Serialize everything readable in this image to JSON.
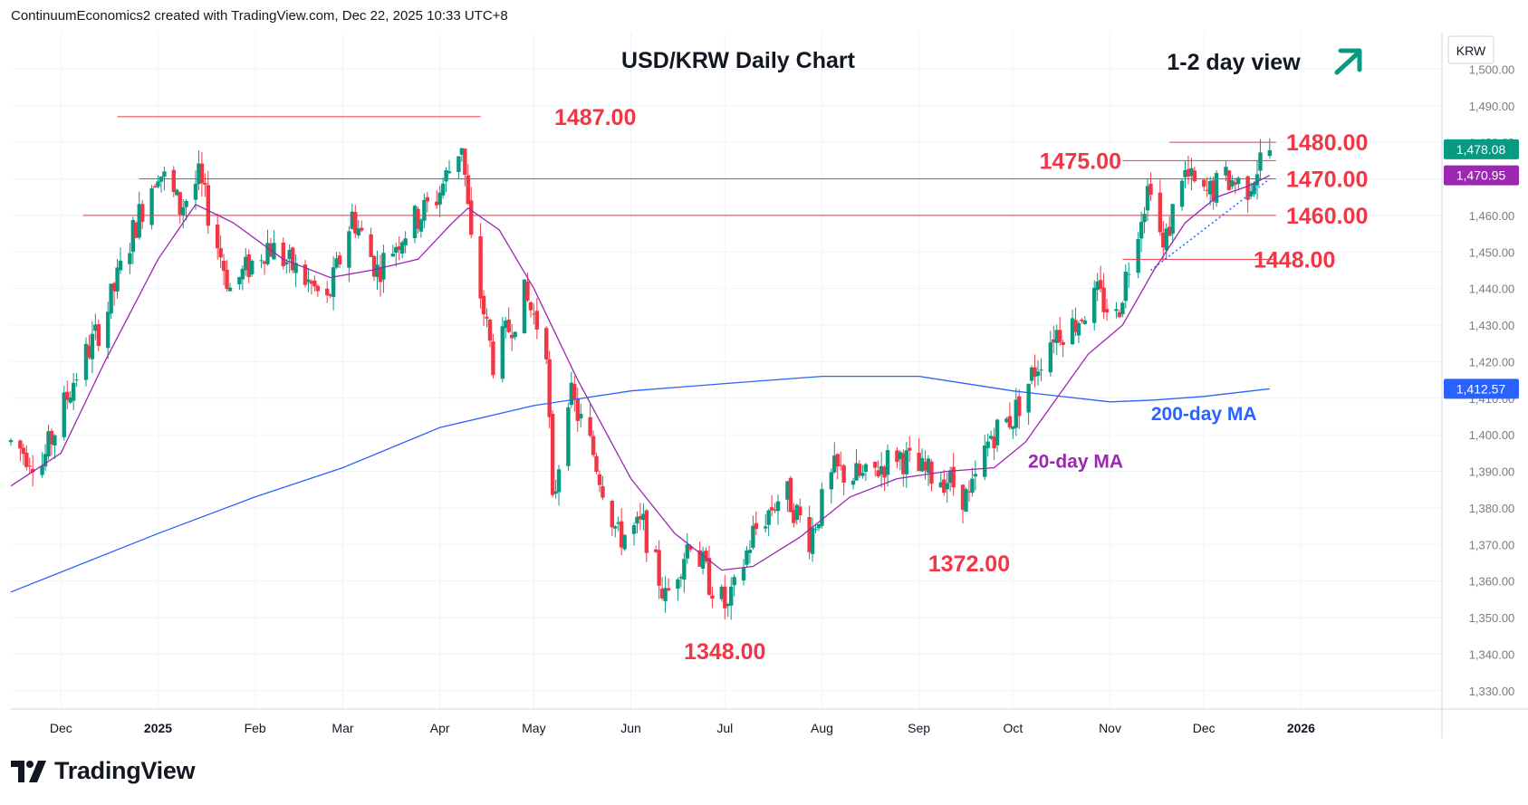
{
  "header": {
    "attribution": "ContinuumEconomics2 created with TradingView.com, Dec 22, 2025 10:33 UTC+8"
  },
  "footer": {
    "brand": "TradingView"
  },
  "colors": {
    "up": "#089981",
    "down": "#f23645",
    "ma20": "#9c27b0",
    "ma200": "#2962ff",
    "level": "#f23645",
    "arrow": "#089981",
    "text": "#131722"
  },
  "chart_data": {
    "type": "candlestick",
    "title": "USD/KRW Daily Chart",
    "subtitle": "1-2 day view",
    "currency_label": "KRW",
    "ylim": [
      1325,
      1510
    ],
    "y_ticks": [
      1330,
      1340,
      1350,
      1360,
      1370,
      1380,
      1390,
      1400,
      1410,
      1420,
      1430,
      1440,
      1450,
      1460,
      1470,
      1480,
      1490,
      1500
    ],
    "y_tick_labels": [
      "1,330.00",
      "1,340.00",
      "1,350.00",
      "1,360.00",
      "1,370.00",
      "1,380.00",
      "1,390.00",
      "1,400.00",
      "1,410.00",
      "1,420.00",
      "1,430.00",
      "1,440.00",
      "1,450.00",
      "1,460.00",
      "1,470.00",
      "1,480.00",
      "1,490.00",
      "1,500.00"
    ],
    "x_ticks": [
      {
        "label": "Dec",
        "date": "2024-12-01"
      },
      {
        "label": "2025",
        "date": "2025-01-01"
      },
      {
        "label": "Feb",
        "date": "2025-02-01"
      },
      {
        "label": "Mar",
        "date": "2025-03-01"
      },
      {
        "label": "Apr",
        "date": "2025-04-01"
      },
      {
        "label": "May",
        "date": "2025-05-01"
      },
      {
        "label": "Jun",
        "date": "2025-06-01"
      },
      {
        "label": "Jul",
        "date": "2025-07-01"
      },
      {
        "label": "Aug",
        "date": "2025-08-01"
      },
      {
        "label": "Sep",
        "date": "2025-09-01"
      },
      {
        "label": "Oct",
        "date": "2025-10-01"
      },
      {
        "label": "Nov",
        "date": "2025-11-01"
      },
      {
        "label": "Dec",
        "date": "2025-12-01"
      },
      {
        "label": "2026",
        "date": "2026-01-01"
      }
    ],
    "x_range": [
      "2024-11-15",
      "2026-02-15"
    ],
    "anchors": [
      [
        "2024-11-15",
        1398
      ],
      [
        "2024-11-25",
        1392
      ],
      [
        "2024-12-05",
        1415
      ],
      [
        "2024-12-15",
        1432
      ],
      [
        "2024-12-25",
        1458
      ],
      [
        "2025-01-01",
        1473
      ],
      [
        "2025-01-08",
        1462
      ],
      [
        "2025-01-14",
        1470
      ],
      [
        "2025-01-24",
        1440
      ],
      [
        "2025-02-05",
        1452
      ],
      [
        "2025-02-14",
        1445
      ],
      [
        "2025-02-24",
        1436
      ],
      [
        "2025-03-04",
        1460
      ],
      [
        "2025-03-12",
        1445
      ],
      [
        "2025-03-20",
        1455
      ],
      [
        "2025-03-31",
        1465
      ],
      [
        "2025-04-08",
        1480
      ],
      [
        "2025-04-11",
        1452
      ],
      [
        "2025-04-18",
        1420
      ],
      [
        "2025-04-28",
        1438
      ],
      [
        "2025-05-05",
        1425
      ],
      [
        "2025-05-07",
        1380
      ],
      [
        "2025-05-12",
        1412
      ],
      [
        "2025-05-20",
        1395
      ],
      [
        "2025-05-28",
        1372
      ],
      [
        "2025-06-05",
        1375
      ],
      [
        "2025-06-12",
        1355
      ],
      [
        "2025-06-20",
        1372
      ],
      [
        "2025-06-26",
        1360
      ],
      [
        "2025-07-02",
        1352
      ],
      [
        "2025-07-10",
        1373
      ],
      [
        "2025-07-20",
        1385
      ],
      [
        "2025-07-28",
        1372
      ],
      [
        "2025-08-05",
        1390
      ],
      [
        "2025-08-15",
        1388
      ],
      [
        "2025-08-25",
        1395
      ],
      [
        "2025-09-01",
        1390
      ],
      [
        "2025-09-10",
        1388
      ],
      [
        "2025-09-17",
        1382
      ],
      [
        "2025-09-24",
        1400
      ],
      [
        "2025-10-01",
        1405
      ],
      [
        "2025-10-08",
        1418
      ],
      [
        "2025-10-14",
        1428
      ],
      [
        "2025-10-20",
        1430
      ],
      [
        "2025-10-28",
        1438
      ],
      [
        "2025-11-03",
        1432
      ],
      [
        "2025-11-10",
        1458
      ],
      [
        "2025-11-14",
        1470
      ],
      [
        "2025-11-18",
        1450
      ],
      [
        "2025-11-24",
        1472
      ],
      [
        "2025-12-01",
        1465
      ],
      [
        "2025-12-08",
        1470
      ],
      [
        "2025-12-15",
        1468
      ],
      [
        "2025-12-19",
        1475
      ],
      [
        "2025-12-22",
        1478
      ]
    ],
    "series": [
      {
        "name": "200-day MA",
        "color": "#2962ff",
        "last_value": 1412.57,
        "last_label": "1,412.57",
        "points": [
          [
            "2024-11-15",
            1357
          ],
          [
            "2025-01-01",
            1373
          ],
          [
            "2025-02-01",
            1383
          ],
          [
            "2025-03-01",
            1391
          ],
          [
            "2025-04-01",
            1402
          ],
          [
            "2025-05-01",
            1408
          ],
          [
            "2025-06-01",
            1412
          ],
          [
            "2025-07-01",
            1414
          ],
          [
            "2025-08-01",
            1416
          ],
          [
            "2025-09-01",
            1416
          ],
          [
            "2025-10-01",
            1412
          ],
          [
            "2025-11-01",
            1409
          ],
          [
            "2025-11-15",
            1409.5
          ],
          [
            "2025-12-01",
            1410.5
          ],
          [
            "2025-12-22",
            1412.57
          ]
        ]
      },
      {
        "name": "20-day MA",
        "color": "#9c27b0",
        "last_value": 1470.95,
        "last_label": "1,470.95",
        "points": [
          [
            "2024-11-15",
            1386
          ],
          [
            "2024-12-01",
            1395
          ],
          [
            "2024-12-15",
            1420
          ],
          [
            "2025-01-01",
            1448
          ],
          [
            "2025-01-13",
            1463
          ],
          [
            "2025-01-25",
            1458
          ],
          [
            "2025-02-10",
            1448
          ],
          [
            "2025-02-25",
            1443
          ],
          [
            "2025-03-10",
            1445
          ],
          [
            "2025-03-25",
            1448
          ],
          [
            "2025-04-05",
            1458
          ],
          [
            "2025-04-10",
            1462
          ],
          [
            "2025-04-20",
            1456
          ],
          [
            "2025-05-01",
            1440
          ],
          [
            "2025-05-15",
            1415
          ],
          [
            "2025-06-01",
            1388
          ],
          [
            "2025-06-15",
            1373
          ],
          [
            "2025-06-30",
            1363
          ],
          [
            "2025-07-10",
            1364
          ],
          [
            "2025-07-25",
            1372
          ],
          [
            "2025-08-10",
            1383
          ],
          [
            "2025-08-25",
            1388
          ],
          [
            "2025-09-10",
            1390
          ],
          [
            "2025-09-25",
            1391
          ],
          [
            "2025-10-05",
            1398
          ],
          [
            "2025-10-15",
            1410
          ],
          [
            "2025-10-25",
            1422
          ],
          [
            "2025-11-05",
            1430
          ],
          [
            "2025-11-15",
            1445
          ],
          [
            "2025-11-25",
            1458
          ],
          [
            "2025-12-05",
            1465
          ],
          [
            "2025-12-15",
            1468
          ],
          [
            "2025-12-22",
            1470.95
          ]
        ]
      }
    ],
    "last_price": 1478.08,
    "last_price_label": "1,478.08",
    "support_trendline": {
      "start": [
        "2025-11-14",
        1445
      ],
      "end": [
        "2025-12-22",
        1470
      ]
    },
    "levels": [
      {
        "label": "1487.00",
        "value": 1487,
        "from": "2024-12-19",
        "to": "2025-04-14"
      },
      {
        "label": "1480.00",
        "value": 1480,
        "from": "2025-11-20",
        "to": "2025-12-24"
      },
      {
        "label": "1475.00",
        "value": 1475,
        "from": "2025-11-05",
        "to": "2025-12-24"
      },
      {
        "label": "1470.00",
        "value": 1470,
        "from": "2024-12-26",
        "to": "2025-12-24"
      },
      {
        "label": "1460.00",
        "value": 1460,
        "from": "2024-12-08",
        "to": "2025-12-24"
      },
      {
        "label": "1448.00",
        "value": 1448,
        "from": "2025-11-05",
        "to": "2025-12-24"
      }
    ],
    "annotations": [
      {
        "text": "1348.00",
        "value": 1348,
        "date": "2025-07-01"
      },
      {
        "text": "1372.00",
        "value": 1372,
        "date": "2025-09-17"
      },
      {
        "text": "20-day MA",
        "value": 1391,
        "date": "2025-10-21"
      },
      {
        "text": "200-day MA",
        "value": 1404,
        "date": "2025-12-01"
      }
    ]
  }
}
